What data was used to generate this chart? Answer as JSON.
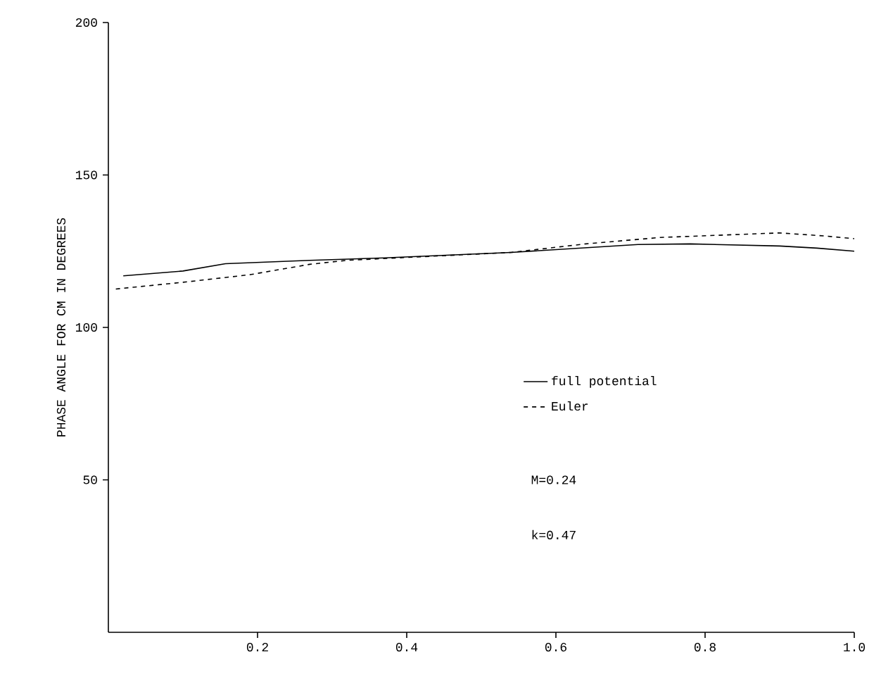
{
  "chart_data": {
    "type": "line",
    "ylabel": "PHASE ANGLE FOR CM IN DEGREES",
    "xlim": [
      0,
      1.0
    ],
    "ylim": [
      0,
      200
    ],
    "xticks": [
      0.2,
      0.4,
      0.6,
      0.8,
      {
        "value": 1.0,
        "label": "1.0"
      }
    ],
    "yticks": [
      50,
      100,
      150,
      200
    ],
    "series": [
      {
        "name": "full potential",
        "color": "#000000",
        "line_style": "solid",
        "x": [
          0.02,
          0.1,
          0.157,
          0.27,
          0.37,
          0.54,
          0.71,
          0.78,
          0.9,
          0.95,
          1.0
        ],
        "values": [
          116.9,
          118.5,
          120.9,
          122,
          122.8,
          124.6,
          127.2,
          127.4,
          126.7,
          126,
          125
        ]
      },
      {
        "name": "Euler",
        "color": "#000000",
        "line_style": "dashed",
        "x": [
          0.01,
          0.1,
          0.19,
          0.27,
          0.32,
          0.54,
          0.64,
          0.74,
          0.9,
          0.96,
          1.0
        ],
        "values": [
          112.6,
          114.8,
          117.3,
          120.7,
          122,
          124.6,
          127.4,
          129.5,
          131,
          130,
          129.1
        ]
      }
    ],
    "legend": "right",
    "annotations": [
      "M=0.24",
      "k=0.47"
    ]
  }
}
